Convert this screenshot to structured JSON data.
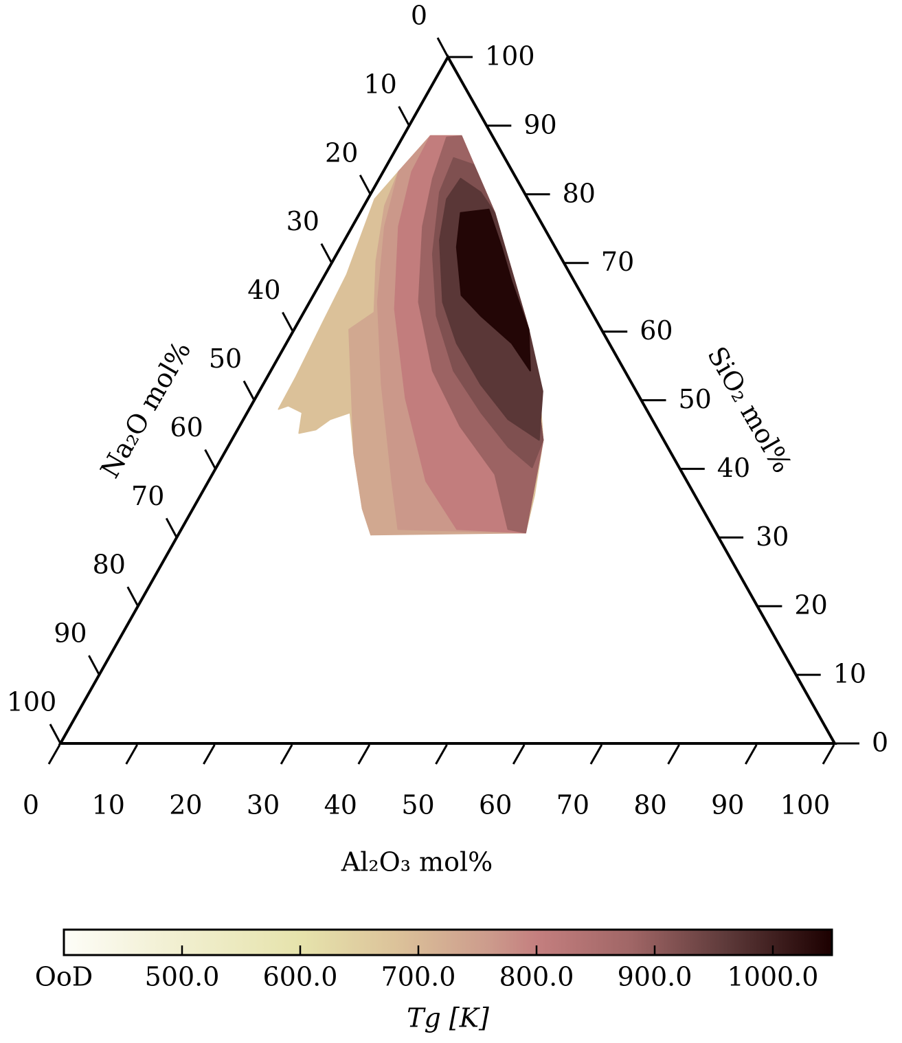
{
  "chart_data": {
    "type": "ternary",
    "axes": {
      "bottom": {
        "label": "Al₂O₃ mol%",
        "ticks": [
          0,
          10,
          20,
          30,
          40,
          50,
          60,
          70,
          80,
          90,
          100
        ]
      },
      "left": {
        "label": "Na₂O mol%",
        "ticks": [
          0,
          10,
          20,
          30,
          40,
          50,
          60,
          70,
          80,
          90,
          100
        ]
      },
      "right": {
        "label": "SiO₂ mol%",
        "ticks": [
          0,
          10,
          20,
          30,
          40,
          50,
          60,
          70,
          80,
          90,
          100
        ]
      }
    },
    "regions": [
      {
        "value": 685,
        "vertices": [
          [
            3.5,
            88.5
          ],
          [
            7.5,
            88.5
          ],
          [
            11.2,
            84.3
          ],
          [
            14.8,
            79.8
          ],
          [
            17.4,
            77.3
          ],
          [
            22.7,
            70.3
          ],
          [
            30.3,
            60.3
          ],
          [
            36.2,
            51.3
          ],
          [
            40.2,
            44.2
          ],
          [
            43.1,
            36.2
          ],
          [
            44.7,
            30.7
          ],
          [
            42.9,
            30.7
          ],
          [
            40.4,
            31.4
          ],
          [
            35.0,
            31.4
          ],
          [
            26.3,
            31.2
          ],
          [
            24.9,
            30.4
          ],
          [
            21.9,
            34.2
          ],
          [
            16.8,
            42.2
          ],
          [
            13.3,
            48.2
          ],
          [
            11.2,
            47.2
          ],
          [
            10.1,
            45.7
          ],
          [
            8.2,
            45.2
          ],
          [
            7.1,
            48.2
          ],
          [
            4.8,
            49.2
          ],
          [
            3.8,
            48.7
          ],
          [
            3.7,
            53.3
          ],
          [
            3.2,
            61.3
          ],
          [
            2.8,
            68.3
          ],
          [
            0.9,
            79.3
          ],
          [
            2.0,
            83.3
          ],
          [
            3.1,
            86.3
          ]
        ]
      },
      {
        "value": 735,
        "vertices": [
          [
            2.0,
            83.3
          ],
          [
            3.5,
            88.5
          ],
          [
            7.5,
            88.5
          ],
          [
            11.2,
            84.3
          ],
          [
            17.4,
            77.3
          ],
          [
            30.3,
            60.3
          ],
          [
            40.2,
            44.2
          ],
          [
            44.7,
            30.7
          ],
          [
            24.9,
            30.4
          ],
          [
            21.9,
            34.2
          ],
          [
            16.8,
            42.2
          ],
          [
            7.1,
            60.3
          ],
          [
            9.1,
            62.8
          ],
          [
            5.6,
            70.3
          ],
          [
            2.7,
            78.3
          ]
        ]
      },
      {
        "value": 765,
        "vertices": [
          [
            2.0,
            83.3
          ],
          [
            3.5,
            88.5
          ],
          [
            7.5,
            88.5
          ],
          [
            11.2,
            84.3
          ],
          [
            17.4,
            77.3
          ],
          [
            30.3,
            60.3
          ],
          [
            40.2,
            44.2
          ],
          [
            44.7,
            30.7
          ],
          [
            28.0,
            31.2
          ],
          [
            23.7,
            38.2
          ],
          [
            15.3,
            52.3
          ],
          [
            8.8,
            64.3
          ],
          [
            4.2,
            75.3
          ]
        ]
      },
      {
        "value": 805,
        "vertices": [
          [
            3.7,
            83.3
          ],
          [
            3.5,
            88.5
          ],
          [
            7.5,
            88.5
          ],
          [
            11.2,
            84.3
          ],
          [
            17.4,
            77.3
          ],
          [
            30.3,
            60.3
          ],
          [
            40.2,
            44.2
          ],
          [
            44.7,
            30.7
          ],
          [
            35.6,
            31.2
          ],
          [
            28.1,
            38.2
          ],
          [
            19.4,
            50.3
          ],
          [
            11.5,
            63.3
          ],
          [
            6.0,
            75.3
          ]
        ]
      },
      {
        "value": 885,
        "vertices": [
          [
            6.9,
            82.3
          ],
          [
            5.7,
            88.3
          ],
          [
            7.5,
            88.5
          ],
          [
            11.2,
            84.3
          ],
          [
            17.4,
            77.3
          ],
          [
            30.3,
            60.3
          ],
          [
            40.2,
            44.2
          ],
          [
            44.7,
            30.7
          ],
          [
            42.2,
            31.2
          ],
          [
            36.5,
            39.2
          ],
          [
            28.5,
            46.2
          ],
          [
            20.9,
            54.3
          ],
          [
            14.1,
            64.3
          ],
          [
            9.1,
            75.3
          ]
        ]
      },
      {
        "value": 920,
        "vertices": [
          [
            8.1,
            85.3
          ],
          [
            11.2,
            84.3
          ],
          [
            17.4,
            77.3
          ],
          [
            30.3,
            60.3
          ],
          [
            40.2,
            44.2
          ],
          [
            40.8,
            40.2
          ],
          [
            36.2,
            43.2
          ],
          [
            30.2,
            48.2
          ],
          [
            23.6,
            54.3
          ],
          [
            17.4,
            62.3
          ],
          [
            12.4,
            71.3
          ],
          [
            8.8,
            80.3
          ]
        ]
      },
      {
        "value": 965,
        "vertices": [
          [
            10.5,
            82.3
          ],
          [
            14.1,
            80.3
          ],
          [
            17.4,
            77.3
          ],
          [
            30.3,
            60.3
          ],
          [
            36.6,
            51.3
          ],
          [
            39.7,
            44.2
          ],
          [
            34.2,
            47.2
          ],
          [
            28.1,
            52.3
          ],
          [
            22.0,
            58.3
          ],
          [
            17.2,
            64.3
          ],
          [
            12.3,
            73.3
          ],
          [
            10.2,
            79.3
          ]
        ]
      },
      {
        "value": 1040,
        "vertices": [
          [
            13.0,
            77.3
          ],
          [
            16.4,
            77.8
          ],
          [
            20.8,
            72.3
          ],
          [
            24.6,
            67.3
          ],
          [
            30.3,
            60.3
          ],
          [
            33.5,
            54.3
          ],
          [
            29.1,
            58.3
          ],
          [
            23.1,
            62.3
          ],
          [
            19.1,
            65.3
          ],
          [
            15.0,
            72.3
          ]
        ]
      }
    ],
    "colorbar": {
      "label": "Tg [K]",
      "clim": [
        400,
        1050
      ],
      "ticks": [
        {
          "value": 400,
          "label": "OoD"
        },
        {
          "value": 500,
          "label": "500.0"
        },
        {
          "value": 600,
          "label": "600.0"
        },
        {
          "value": 700,
          "label": "700.0"
        },
        {
          "value": 800,
          "label": "800.0"
        },
        {
          "value": 900,
          "label": "900.0"
        },
        {
          "value": 1000,
          "label": "1000.0"
        }
      ],
      "colormap": [
        {
          "value": 400,
          "color": "#fdfdf8"
        },
        {
          "value": 480,
          "color": "#f3f1d6"
        },
        {
          "value": 600,
          "color": "#e6e3ac"
        },
        {
          "value": 680,
          "color": "#dcc39a"
        },
        {
          "value": 760,
          "color": "#cc9b8c"
        },
        {
          "value": 800,
          "color": "#c47f7f"
        },
        {
          "value": 880,
          "color": "#a06666"
        },
        {
          "value": 960,
          "color": "#5e3a3a"
        },
        {
          "value": 1050,
          "color": "#1c0000"
        }
      ]
    }
  }
}
